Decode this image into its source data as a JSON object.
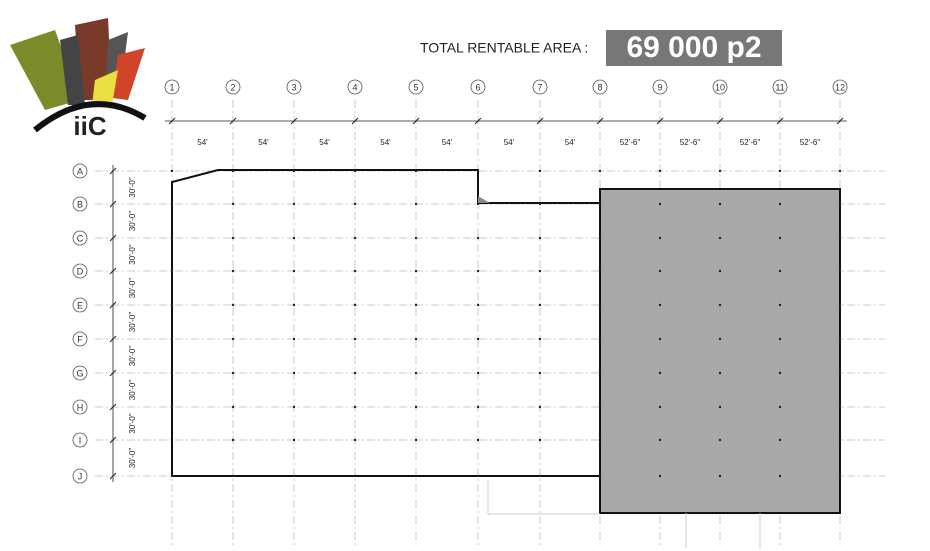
{
  "logo": {
    "text": "iiC"
  },
  "header": {
    "label": "TOTAL RENTABLE AREA :",
    "area": "69 000 p2"
  },
  "plan": {
    "columns": [
      "1",
      "2",
      "3",
      "4",
      "5",
      "6",
      "7",
      "8",
      "9",
      "10",
      "11",
      "12"
    ],
    "rows": [
      "A",
      "B",
      "C",
      "D",
      "E",
      "F",
      "G",
      "H",
      "I",
      "J"
    ],
    "column_dims": [
      "54'",
      "54'",
      "54'",
      "54'",
      "54'",
      "54'",
      "54'",
      "52'-6\"",
      "52'-6\"",
      "52'-6\"",
      "52'-6\""
    ],
    "row_dims": [
      "30'-0\"",
      "30'-0\"",
      "30'-0\"",
      "30'-0\"",
      "30'-0\"",
      "30'-0\"",
      "30'-0\"",
      "30'-0\"",
      "30'-0\""
    ]
  }
}
